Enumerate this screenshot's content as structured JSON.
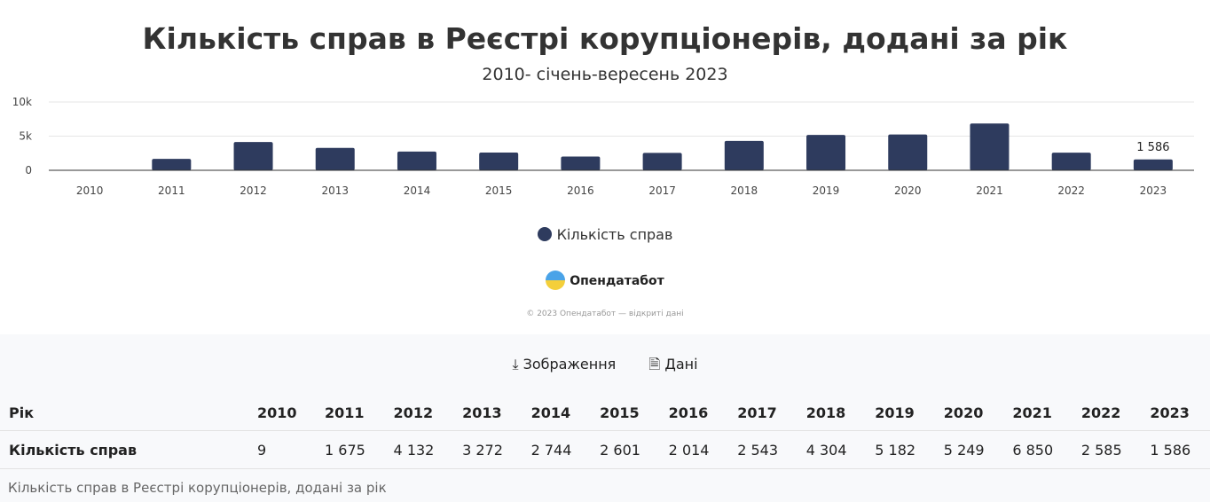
{
  "title": "Кількість справ в Реєстрі корупціонерів, додані за рік",
  "subtitle": "2010- січень-вересень 2023",
  "chart_data": {
    "type": "bar",
    "title": "Кількість справ в Реєстрі корупціонерів, додані за рік",
    "subtitle": "2010- січень-вересень 2023",
    "categories": [
      "2010",
      "2011",
      "2012",
      "2013",
      "2014",
      "2015",
      "2016",
      "2017",
      "2018",
      "2019",
      "2020",
      "2021",
      "2022",
      "2023"
    ],
    "series": [
      {
        "name": "Кількість справ",
        "values": [
          9,
          1675,
          4132,
          3272,
          2744,
          2601,
          2014,
          2543,
          4304,
          5182,
          5249,
          6850,
          2585,
          1586
        ]
      }
    ],
    "yticks": [
      "0",
      "5k",
      "10k"
    ],
    "ylim": [
      0,
      10000
    ],
    "data_label": "1 586",
    "legend": "bottom",
    "color": "#2e3b5e"
  },
  "legend_label": "Кількість справ",
  "logo": "Опендатабот",
  "copyright": "© 2023 Опендатабот — відкриті дані",
  "actions": {
    "image": "Зображення",
    "data": "Дані"
  },
  "table": {
    "header": [
      "Рік",
      "2010",
      "2011",
      "2012",
      "2013",
      "2014",
      "2015",
      "2016",
      "2017",
      "2018",
      "2019",
      "2020",
      "2021",
      "2022",
      "2023"
    ],
    "row": [
      "Кількість справ",
      "9",
      "1 675",
      "4 132",
      "3 272",
      "2 744",
      "2 601",
      "2 014",
      "2 543",
      "4 304",
      "5 182",
      "5 249",
      "6 850",
      "2 585",
      "1 586"
    ]
  },
  "caption": "Кількість справ в Реєстрі корупціонерів, додані за рік"
}
